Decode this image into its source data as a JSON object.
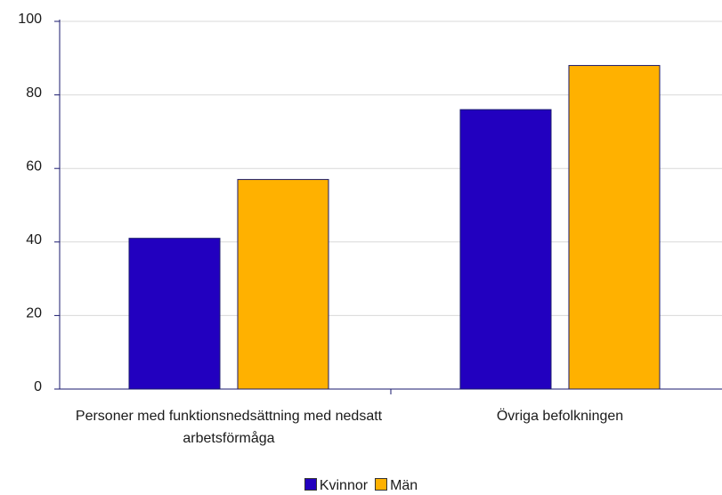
{
  "chart_data": {
    "type": "bar",
    "categories": [
      "Personer med funktionsnedsättning med nedsatt arbetsförmåga",
      "Övriga befolkningen"
    ],
    "series": [
      {
        "name": "Kvinnor",
        "color": "#2200bf",
        "values": [
          41,
          76
        ]
      },
      {
        "name": "Män",
        "color": "#ffb100",
        "values": [
          57,
          88
        ]
      }
    ],
    "ylim": [
      0,
      100
    ],
    "yticks": [
      0,
      20,
      40,
      60,
      80,
      100
    ],
    "grid": true,
    "legend": "bottom"
  }
}
